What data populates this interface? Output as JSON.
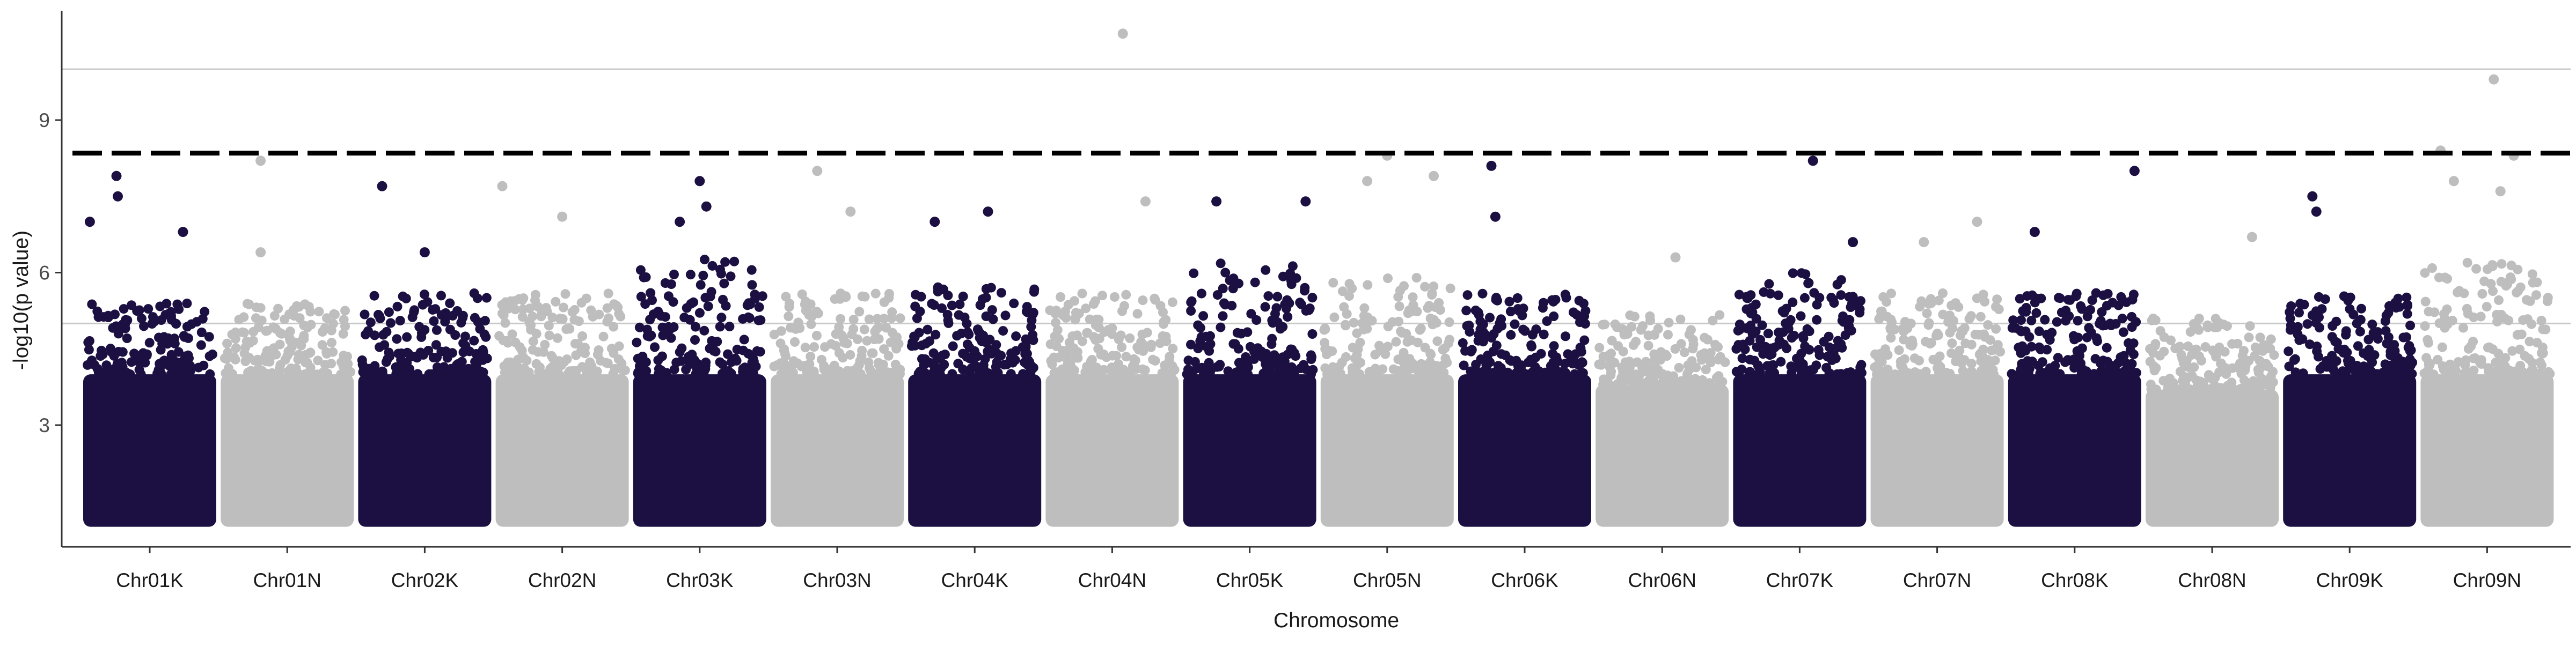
{
  "chart_data": {
    "type": "scatter",
    "title": "",
    "xlabel": "Chromosome",
    "ylabel": "-log10(p value)",
    "ylim": [
      0,
      11
    ],
    "yticks": [
      3,
      6,
      9
    ],
    "ytick_labels": [
      "3",
      "6",
      "9"
    ],
    "grid": false,
    "legend": "none",
    "colors": {
      "dark": "#1c1042",
      "light": "#bebebe",
      "threshold": "#000000",
      "refline": "#c8c8c8"
    },
    "reference_lines": [
      {
        "y": 10,
        "style": "solid"
      },
      {
        "y": 5,
        "style": "solid"
      }
    ],
    "threshold_line": {
      "y": 8.35,
      "style": "dashed"
    },
    "categories": [
      "Chr01K",
      "Chr01N",
      "Chr02K",
      "Chr02N",
      "Chr03K",
      "Chr03N",
      "Chr04K",
      "Chr04N",
      "Chr05K",
      "Chr05N",
      "Chr06K",
      "Chr06N",
      "Chr07K",
      "Chr07N",
      "Chr08K",
      "Chr08N",
      "Chr09K",
      "Chr09N"
    ],
    "series": [
      {
        "color_key": "dark",
        "chromosomes": [
          "Chr01K",
          "Chr02K",
          "Chr03K",
          "Chr04K",
          "Chr05K",
          "Chr06K",
          "Chr07K",
          "Chr08K",
          "Chr09K"
        ],
        "bulk_max": [
          4.8,
          5.0,
          5.8,
          5.2,
          5.6,
          5.0,
          5.4,
          5.0,
          5.0
        ],
        "notable_points": [
          {
            "chr": "Chr01K",
            "pos": 0.25,
            "y": 7.9
          },
          {
            "chr": "Chr01K",
            "pos": 0.26,
            "y": 7.5
          },
          {
            "chr": "Chr01K",
            "pos": 0.75,
            "y": 6.8
          },
          {
            "chr": "Chr01K",
            "pos": 0.05,
            "y": 7.0
          },
          {
            "chr": "Chr02K",
            "pos": 0.18,
            "y": 7.7
          },
          {
            "chr": "Chr02K",
            "pos": 0.5,
            "y": 6.4
          },
          {
            "chr": "Chr03K",
            "pos": 0.5,
            "y": 7.8
          },
          {
            "chr": "Chr03K",
            "pos": 0.55,
            "y": 7.3
          },
          {
            "chr": "Chr03K",
            "pos": 0.35,
            "y": 7.0
          },
          {
            "chr": "Chr04K",
            "pos": 0.6,
            "y": 7.2
          },
          {
            "chr": "Chr04K",
            "pos": 0.2,
            "y": 7.0
          },
          {
            "chr": "Chr05K",
            "pos": 0.25,
            "y": 7.4
          },
          {
            "chr": "Chr05K",
            "pos": 0.92,
            "y": 7.4
          },
          {
            "chr": "Chr06K",
            "pos": 0.25,
            "y": 8.1
          },
          {
            "chr": "Chr06K",
            "pos": 0.28,
            "y": 7.1
          },
          {
            "chr": "Chr07K",
            "pos": 0.6,
            "y": 8.2
          },
          {
            "chr": "Chr07K",
            "pos": 0.9,
            "y": 6.6
          },
          {
            "chr": "Chr08K",
            "pos": 0.95,
            "y": 8.0
          },
          {
            "chr": "Chr08K",
            "pos": 0.2,
            "y": 6.8
          },
          {
            "chr": "Chr09K",
            "pos": 0.22,
            "y": 7.5
          },
          {
            "chr": "Chr09K",
            "pos": 0.25,
            "y": 7.2
          }
        ]
      },
      {
        "color_key": "light",
        "chromosomes": [
          "Chr01N",
          "Chr02N",
          "Chr03N",
          "Chr04N",
          "Chr05N",
          "Chr06N",
          "Chr07N",
          "Chr08N",
          "Chr09N"
        ],
        "bulk_max": [
          4.8,
          5.0,
          5.0,
          5.0,
          5.3,
          4.6,
          5.0,
          4.5,
          5.6
        ],
        "notable_points": [
          {
            "chr": "Chr01N",
            "pos": 0.3,
            "y": 8.2
          },
          {
            "chr": "Chr01N",
            "pos": 0.3,
            "y": 6.4
          },
          {
            "chr": "Chr02N",
            "pos": 0.05,
            "y": 7.7
          },
          {
            "chr": "Chr02N",
            "pos": 0.5,
            "y": 7.1
          },
          {
            "chr": "Chr03N",
            "pos": 0.35,
            "y": 8.0
          },
          {
            "chr": "Chr03N",
            "pos": 0.6,
            "y": 7.2
          },
          {
            "chr": "Chr04N",
            "pos": 0.58,
            "y": 10.7
          },
          {
            "chr": "Chr04N",
            "pos": 0.75,
            "y": 7.4
          },
          {
            "chr": "Chr05N",
            "pos": 0.5,
            "y": 8.3
          },
          {
            "chr": "Chr05N",
            "pos": 0.35,
            "y": 7.8
          },
          {
            "chr": "Chr05N",
            "pos": 0.85,
            "y": 7.9
          },
          {
            "chr": "Chr06N",
            "pos": 0.6,
            "y": 6.3
          },
          {
            "chr": "Chr07N",
            "pos": 0.4,
            "y": 6.6
          },
          {
            "chr": "Chr07N",
            "pos": 0.8,
            "y": 7.0
          },
          {
            "chr": "Chr08N",
            "pos": 0.8,
            "y": 6.7
          },
          {
            "chr": "Chr09N",
            "pos": 0.55,
            "y": 9.8
          },
          {
            "chr": "Chr09N",
            "pos": 0.15,
            "y": 8.4
          },
          {
            "chr": "Chr09N",
            "pos": 0.7,
            "y": 8.3
          },
          {
            "chr": "Chr09N",
            "pos": 0.25,
            "y": 7.8
          },
          {
            "chr": "Chr09N",
            "pos": 0.6,
            "y": 7.6
          }
        ]
      }
    ]
  }
}
